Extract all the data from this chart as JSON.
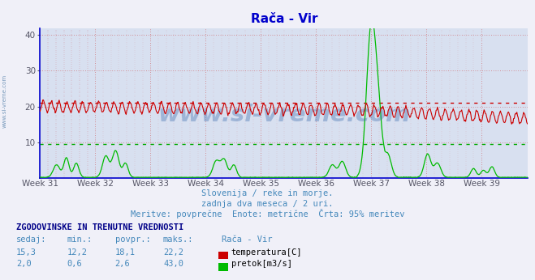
{
  "title": "Rača - Vir",
  "title_color": "#0000cc",
  "bg_color": "#f0f0f8",
  "plot_bg_color": "#d8e0f0",
  "grid_color_h": "#cc4444",
  "grid_color_v": "#cc4444",
  "x_tick_labels": [
    "Week 31",
    "Week 32",
    "Week 33",
    "Week 34",
    "Week 35",
    "Week 36",
    "Week 37",
    "Week 38",
    "Week 39"
  ],
  "ylim": [
    0,
    42
  ],
  "yticks": [
    10,
    20,
    30,
    40
  ],
  "num_points": 744,
  "temp_color": "#cc0000",
  "flow_color": "#00bb00",
  "hline_red_value": 21.0,
  "hline_green_value": 9.5,
  "hline_color_red": "#cc0000",
  "hline_color_green": "#00aa00",
  "subtitle1": "Slovenija / reke in morje.",
  "subtitle2": "zadnja dva meseca / 2 uri.",
  "subtitle3": "Meritve: povprečne  Enote: metrične  Črta: 95% meritev",
  "subtitle_color": "#4488bb",
  "table_header": "ZGODOVINSKE IN TRENUTNE VREDNOSTI",
  "table_color": "#000088",
  "col_headers": [
    "sedaj:",
    "min.:",
    "povpr.:",
    "maks.:",
    "Rača - Vir"
  ],
  "temp_row": [
    "15,3",
    "12,2",
    "18,1",
    "22,2",
    "temperatura[C]"
  ],
  "flow_row": [
    "2,0",
    "0,6",
    "2,6",
    "43,0",
    "pretok[m3/s]"
  ],
  "watermark": "www.si-vreme.com",
  "watermark_color": "#3366aa",
  "left_label": "www.si-vreme.com",
  "left_label_color": "#7799bb",
  "spine_color": "#0000cc",
  "num_weeks": 9,
  "points_per_week": 84
}
